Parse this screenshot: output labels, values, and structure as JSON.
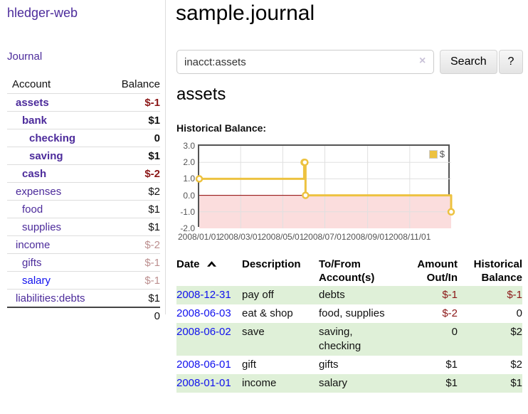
{
  "app": {
    "brand": "hledger-web",
    "nav": {
      "journal": "Journal"
    }
  },
  "sidebar": {
    "accounts": {
      "header": {
        "account": "Account",
        "balance": "Balance"
      },
      "rows": [
        {
          "name": "assets",
          "balance": "$-1"
        },
        {
          "name": "bank",
          "balance": "$1"
        },
        {
          "name": "checking",
          "balance": "0"
        },
        {
          "name": "saving",
          "balance": "$1"
        },
        {
          "name": "cash",
          "balance": "$-2"
        },
        {
          "name": "expenses",
          "balance": "$2"
        },
        {
          "name": "food",
          "balance": "$1"
        },
        {
          "name": "supplies",
          "balance": "$1"
        },
        {
          "name": "income",
          "balance": "$-2"
        },
        {
          "name": "gifts",
          "balance": "$-1"
        },
        {
          "name": "salary",
          "balance": "$-1"
        },
        {
          "name": "liabilities:debts",
          "balance": "$1"
        }
      ],
      "total": "0"
    }
  },
  "header": {
    "title": "sample.journal"
  },
  "search": {
    "value": "inacct:assets",
    "clear_icon": "×",
    "search_label": "Search",
    "help_label": "?"
  },
  "account_page": {
    "title": "assets",
    "chart_label": "Historical Balance:"
  },
  "chart_data": {
    "type": "line",
    "step": true,
    "title": "Historical Balance",
    "series": [
      {
        "name": "$",
        "color": "#edc240",
        "points": [
          [
            "2008/01/01",
            1
          ],
          [
            "2008/06/01",
            2
          ],
          [
            "2008/06/02",
            2
          ],
          [
            "2008/06/03",
            0
          ],
          [
            "2008/12/31",
            -1
          ]
        ]
      }
    ],
    "x_range": [
      "2008/01/01",
      "2008/12/31"
    ],
    "ylim": [
      -2,
      3
    ],
    "y_ticks": [
      "3.0",
      "2.0",
      "1.0",
      "0.0",
      "-1.0",
      "-2.0"
    ],
    "x_ticks": [
      "2008/01/01",
      "2008/03/01",
      "2008/05/01",
      "2008/07/01",
      "2008/09/01",
      "2008/11/01"
    ],
    "grid": true,
    "legend_position": "top-right",
    "colors": {
      "negative_region": "#fbdddd",
      "zero_line": "#8b0000",
      "border": "#545454",
      "gridline": "#e0e0e0",
      "tick_text": "#545454"
    }
  },
  "register": {
    "headers": {
      "date": "Date",
      "description": "Description",
      "tofrom_line1": "To/From",
      "tofrom_line2": "Account(s)",
      "amount_line1": "Amount",
      "amount_line2": "Out/In",
      "balance_line1": "Historical",
      "balance_line2": "Balance"
    },
    "rows": [
      {
        "date": "2008-12-31",
        "description": "pay off",
        "accounts": "debts",
        "amount": "$-1",
        "balance": "$-1"
      },
      {
        "date": "2008-06-03",
        "description": "eat & shop",
        "accounts": "food, supplies",
        "amount": "$-2",
        "balance": "0"
      },
      {
        "date": "2008-06-02",
        "description": "save",
        "accounts": "saving,\nchecking",
        "amount": "0",
        "balance": "$2"
      },
      {
        "date": "2008-06-01",
        "description": "gift",
        "accounts": "gifts",
        "amount": "$1",
        "balance": "$2"
      },
      {
        "date": "2008-01-01",
        "description": "income",
        "accounts": "salary",
        "amount": "$1",
        "balance": "$1"
      }
    ]
  }
}
